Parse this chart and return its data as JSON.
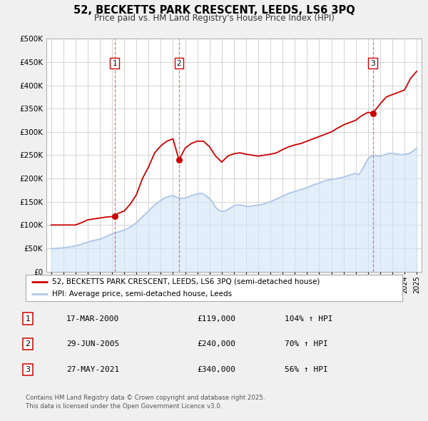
{
  "title": "52, BECKETTS PARK CRESCENT, LEEDS, LS6 3PQ",
  "subtitle": "Price paid vs. HM Land Registry's House Price Index (HPI)",
  "background_color": "#f0f0f0",
  "plot_background_color": "#ffffff",
  "grid_color": "#cccccc",
  "hpi_color": "#aec6e8",
  "hpi_fill_color": "#d0e4f5",
  "price_color": "#cc0000",
  "sale_marker_color": "#cc0000",
  "vline_color": "#e06060",
  "ylim": [
    0,
    500000
  ],
  "yticks": [
    0,
    50000,
    100000,
    150000,
    200000,
    250000,
    300000,
    350000,
    400000,
    450000,
    500000
  ],
  "sales": [
    {
      "label": "1",
      "year": 2000.21,
      "price": 119000,
      "date": "17-MAR-2000",
      "pct": "104%",
      "dir": "↑"
    },
    {
      "label": "2",
      "year": 2005.49,
      "price": 240000,
      "date": "29-JUN-2005",
      "pct": "70%",
      "dir": "↑"
    },
    {
      "label": "3",
      "year": 2021.4,
      "price": 340000,
      "date": "27-MAY-2021",
      "pct": "56%",
      "dir": "↑"
    }
  ],
  "legend_label_price": "52, BECKETTS PARK CRESCENT, LEEDS, LS6 3PQ (semi-detached house)",
  "legend_label_hpi": "HPI: Average price, semi-detached house, Leeds",
  "footer": "Contains HM Land Registry data © Crown copyright and database right 2025.\nThis data is licensed under the Open Government Licence v3.0.",
  "hpi_data": {
    "years": [
      1995.0,
      1995.25,
      1995.5,
      1995.75,
      1996.0,
      1996.25,
      1996.5,
      1996.75,
      1997.0,
      1997.25,
      1997.5,
      1997.75,
      1998.0,
      1998.25,
      1998.5,
      1998.75,
      1999.0,
      1999.25,
      1999.5,
      1999.75,
      2000.0,
      2000.25,
      2000.5,
      2000.75,
      2001.0,
      2001.25,
      2001.5,
      2001.75,
      2002.0,
      2002.25,
      2002.5,
      2002.75,
      2003.0,
      2003.25,
      2003.5,
      2003.75,
      2004.0,
      2004.25,
      2004.5,
      2004.75,
      2005.0,
      2005.25,
      2005.5,
      2005.75,
      2006.0,
      2006.25,
      2006.5,
      2006.75,
      2007.0,
      2007.25,
      2007.5,
      2007.75,
      2008.0,
      2008.25,
      2008.5,
      2008.75,
      2009.0,
      2009.25,
      2009.5,
      2009.75,
      2010.0,
      2010.25,
      2010.5,
      2010.75,
      2011.0,
      2011.25,
      2011.5,
      2011.75,
      2012.0,
      2012.25,
      2012.5,
      2012.75,
      2013.0,
      2013.25,
      2013.5,
      2013.75,
      2014.0,
      2014.25,
      2014.5,
      2014.75,
      2015.0,
      2015.25,
      2015.5,
      2015.75,
      2016.0,
      2016.25,
      2016.5,
      2016.75,
      2017.0,
      2017.25,
      2017.5,
      2017.75,
      2018.0,
      2018.25,
      2018.5,
      2018.75,
      2019.0,
      2019.25,
      2019.5,
      2019.75,
      2020.0,
      2020.25,
      2020.5,
      2020.75,
      2021.0,
      2021.25,
      2021.5,
      2021.75,
      2022.0,
      2022.25,
      2022.5,
      2022.75,
      2023.0,
      2023.25,
      2023.5,
      2023.75,
      2024.0,
      2024.25,
      2024.5,
      2024.75,
      2025.0
    ],
    "values": [
      49000,
      49500,
      50000,
      50500,
      51000,
      52000,
      53000,
      54000,
      55000,
      57000,
      59000,
      61000,
      63000,
      65000,
      67000,
      68000,
      70000,
      72000,
      75000,
      78000,
      81000,
      83000,
      85000,
      87000,
      89000,
      92000,
      96000,
      100000,
      105000,
      111000,
      118000,
      124000,
      130000,
      137000,
      143000,
      148000,
      153000,
      157000,
      160000,
      162000,
      163000,
      160000,
      158000,
      157000,
      158000,
      160000,
      163000,
      165000,
      167000,
      168000,
      167000,
      162000,
      157000,
      149000,
      138000,
      132000,
      129000,
      130000,
      133000,
      137000,
      141000,
      143000,
      143000,
      142000,
      140000,
      140000,
      141000,
      142000,
      143000,
      144000,
      146000,
      148000,
      150000,
      153000,
      156000,
      159000,
      162000,
      165000,
      168000,
      170000,
      172000,
      174000,
      176000,
      178000,
      180000,
      183000,
      186000,
      188000,
      190000,
      193000,
      195000,
      197000,
      198000,
      199000,
      200000,
      201000,
      203000,
      205000,
      207000,
      209000,
      211000,
      208000,
      218000,
      230000,
      242000,
      248000,
      250000,
      248000,
      248000,
      250000,
      252000,
      254000,
      254000,
      253000,
      252000,
      251000,
      252000,
      253000,
      255000,
      260000,
      265000
    ]
  },
  "price_data": {
    "years": [
      1995.0,
      1995.5,
      1996.0,
      1996.5,
      1997.0,
      1997.5,
      1997.75,
      1998.0,
      1998.5,
      1999.0,
      1999.5,
      2000.0,
      2000.21,
      2000.5,
      2001.0,
      2001.5,
      2002.0,
      2002.5,
      2003.0,
      2003.5,
      2004.0,
      2004.5,
      2005.0,
      2005.49,
      2006.0,
      2006.5,
      2007.0,
      2007.5,
      2008.0,
      2008.5,
      2009.0,
      2009.5,
      2010.0,
      2010.5,
      2011.0,
      2011.5,
      2012.0,
      2012.5,
      2013.0,
      2013.5,
      2014.0,
      2014.5,
      2015.0,
      2015.5,
      2016.0,
      2016.5,
      2017.0,
      2017.5,
      2018.0,
      2018.5,
      2019.0,
      2019.5,
      2020.0,
      2020.5,
      2021.0,
      2021.4,
      2022.0,
      2022.5,
      2023.0,
      2023.5,
      2024.0,
      2024.5,
      2025.0
    ],
    "values": [
      100000,
      100000,
      100000,
      100000,
      100000,
      105000,
      108000,
      111000,
      113000,
      115000,
      117000,
      118000,
      119000,
      125000,
      130000,
      145000,
      165000,
      200000,
      225000,
      255000,
      270000,
      280000,
      285000,
      240000,
      265000,
      275000,
      280000,
      280000,
      268000,
      248000,
      235000,
      248000,
      253000,
      255000,
      252000,
      250000,
      248000,
      250000,
      252000,
      255000,
      262000,
      268000,
      272000,
      275000,
      280000,
      285000,
      290000,
      295000,
      300000,
      308000,
      315000,
      320000,
      325000,
      335000,
      342000,
      340000,
      360000,
      375000,
      380000,
      385000,
      390000,
      415000,
      430000
    ]
  }
}
